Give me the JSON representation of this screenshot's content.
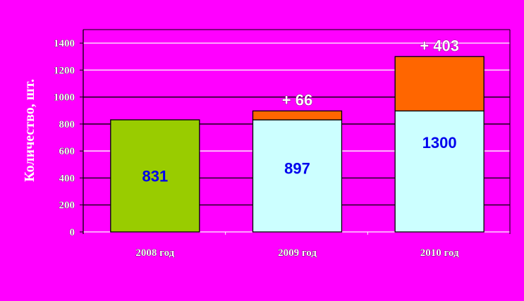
{
  "chart_data": {
    "type": "bar",
    "stacked": true,
    "title": "",
    "xlabel": "",
    "ylabel": "Количество, шт.",
    "ylim": [
      0,
      1500
    ],
    "yticks": [
      0,
      200,
      400,
      600,
      800,
      1000,
      1200,
      1400
    ],
    "categories": [
      "2008 год",
      "2009 год",
      "2010 год"
    ],
    "series": [
      {
        "values": [
          831,
          831,
          897
        ],
        "colors": [
          "#99cc00",
          "#ccffff",
          "#ccffff"
        ]
      },
      {
        "values": [
          0,
          66,
          403
        ],
        "color": "#ff6600"
      }
    ],
    "total_labels": [
      "831",
      "897",
      "1300"
    ],
    "increase_labels": [
      "",
      "+ 66",
      "+ 403"
    ],
    "grid": true,
    "background": "#ff00ff"
  }
}
